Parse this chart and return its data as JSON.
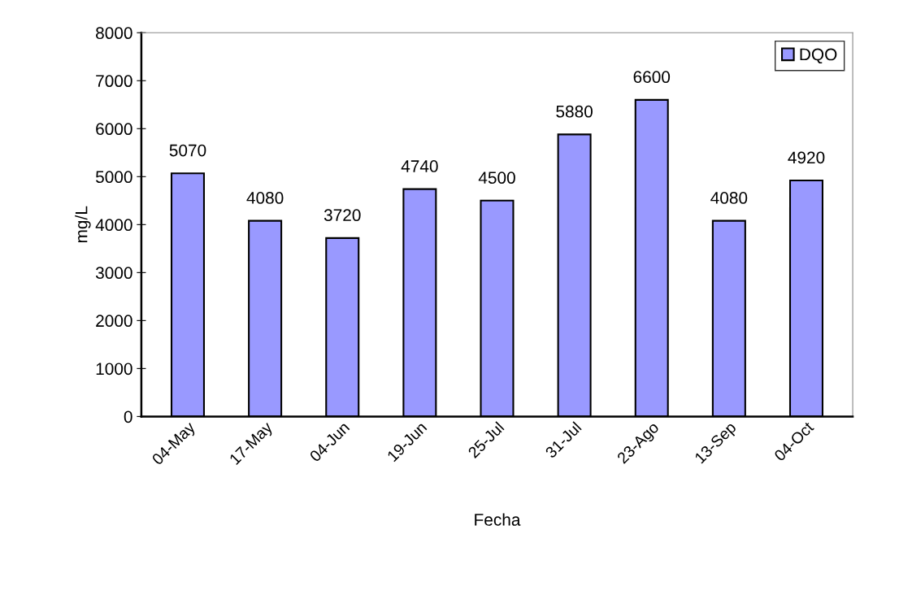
{
  "chart_data": {
    "type": "bar",
    "xlabel": "Fecha",
    "ylabel": "mg/L",
    "categories": [
      "04-May",
      "17-May",
      "04-Jun",
      "19-Jun",
      "25-Jul",
      "31-Jul",
      "23-Ago",
      "13-Sep",
      "04-Oct"
    ],
    "series": [
      {
        "name": "DQO",
        "color": "#9999ff",
        "values": [
          5070,
          4080,
          3720,
          4740,
          4500,
          5880,
          6600,
          4080,
          4920
        ]
      }
    ],
    "ylim": [
      0,
      8000
    ],
    "yticks": [
      0,
      1000,
      2000,
      3000,
      4000,
      5000,
      6000,
      7000,
      8000
    ],
    "data_labels": true,
    "legend": "top right",
    "grid": false
  }
}
